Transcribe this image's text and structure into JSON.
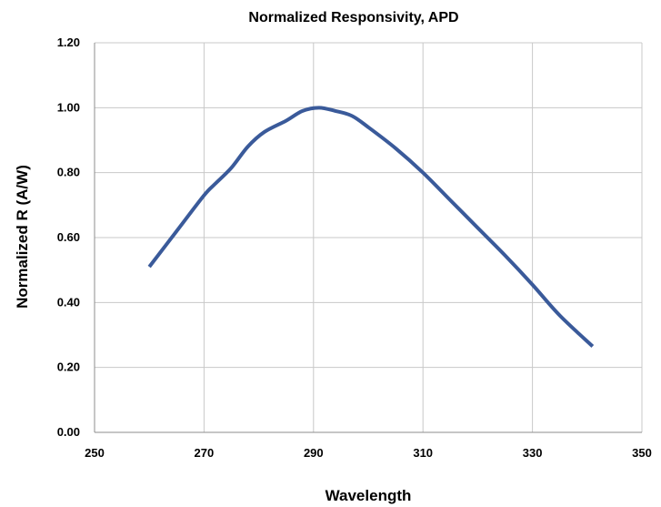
{
  "chart_data": {
    "type": "line",
    "title": "Normalized Responsivity, APD",
    "xlabel": "Wavelength",
    "ylabel": "Normalized R (A/W)",
    "xlim": [
      250,
      350
    ],
    "ylim": [
      0,
      1.2
    ],
    "xticks": [
      250,
      270,
      290,
      310,
      330,
      350
    ],
    "xtick_labels": [
      "250",
      "270",
      "290",
      "310",
      "330",
      "350"
    ],
    "yticks": [
      0,
      0.2,
      0.4,
      0.6,
      0.8,
      1.0,
      1.2
    ],
    "ytick_labels": [
      "0.00",
      "0.20",
      "0.40",
      "0.60",
      "0.80",
      "1.00",
      "1.20"
    ],
    "grid": true,
    "legend": "none",
    "series": [
      {
        "color": "#3a5a9a",
        "x": [
          260,
          265,
          270,
          272,
          275,
          278,
          281,
          285,
          288,
          291,
          294,
          297,
          300,
          305,
          310,
          315,
          320,
          325,
          330,
          335,
          341
        ],
        "y": [
          0.51,
          0.62,
          0.73,
          0.765,
          0.815,
          0.88,
          0.925,
          0.96,
          0.99,
          1.0,
          0.99,
          0.975,
          0.94,
          0.875,
          0.8,
          0.715,
          0.63,
          0.545,
          0.455,
          0.36,
          0.265
        ]
      }
    ]
  }
}
